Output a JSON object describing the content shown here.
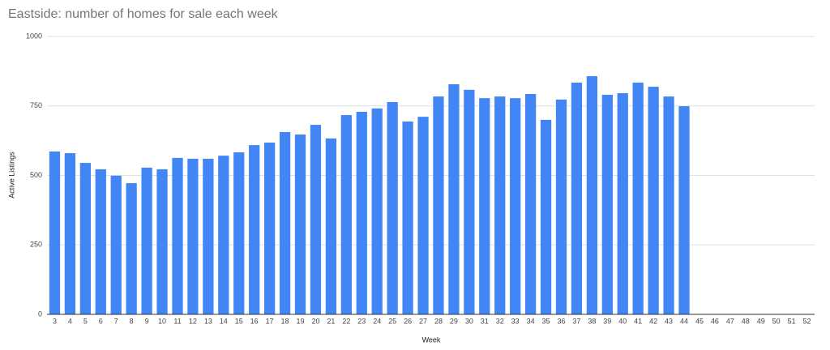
{
  "chart_data": {
    "type": "bar",
    "title": "Eastside: number of homes for sale each week",
    "x_label": "Week",
    "y_label": "Active Listings",
    "categories": [
      3,
      4,
      5,
      6,
      7,
      8,
      9,
      10,
      11,
      12,
      13,
      14,
      15,
      16,
      17,
      18,
      19,
      20,
      21,
      22,
      23,
      24,
      25,
      26,
      27,
      28,
      29,
      30,
      31,
      32,
      33,
      34,
      35,
      36,
      37,
      38,
      39,
      40,
      41,
      42,
      43,
      44,
      45,
      46,
      47,
      48,
      49,
      50,
      51,
      52
    ],
    "values": [
      586,
      580,
      545,
      522,
      499,
      472,
      528,
      522,
      563,
      560,
      560,
      571,
      583,
      609,
      618,
      656,
      647,
      682,
      633,
      717,
      729,
      741,
      764,
      694,
      711,
      784,
      828,
      808,
      778,
      784,
      778,
      793,
      700,
      773,
      834,
      857,
      790,
      796,
      834,
      819,
      784,
      749,
      null,
      null,
      null,
      null,
      null,
      null,
      null,
      null
    ],
    "color": "#4285f4",
    "ylim": [
      0,
      1000
    ],
    "yticks": [
      0,
      250,
      500,
      750,
      1000
    ],
    "grid": true
  }
}
